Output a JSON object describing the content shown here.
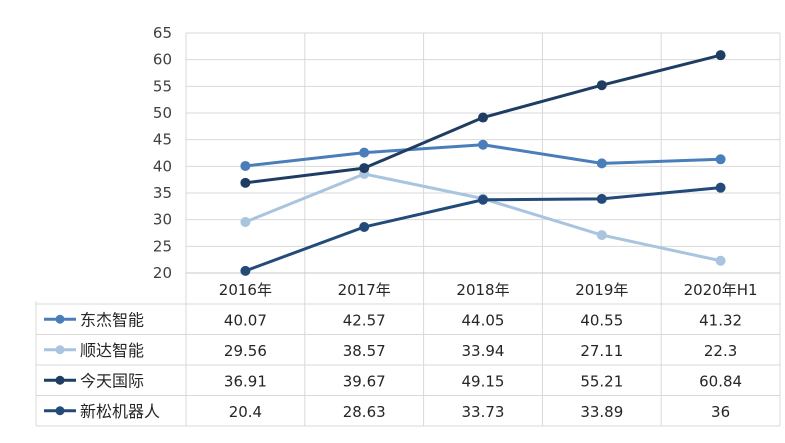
{
  "chart_data": {
    "type": "line",
    "categories": [
      "2016年",
      "2017年",
      "2018年",
      "2019年",
      "2020年H1"
    ],
    "ylim": [
      20,
      65
    ],
    "yticks": [
      20,
      25,
      30,
      35,
      40,
      45,
      50,
      55,
      60,
      65
    ],
    "grid": true,
    "legend_placement": "data-table-left",
    "series": [
      {
        "name": "东杰智能",
        "values": [
          40.07,
          42.57,
          44.05,
          40.55,
          41.32
        ],
        "value_labels": [
          "40.07",
          "42.57",
          "44.05",
          "40.55",
          "41.32"
        ],
        "color": "#4a7ebb"
      },
      {
        "name": "顺达智能",
        "values": [
          29.56,
          38.57,
          33.94,
          27.11,
          22.3
        ],
        "value_labels": [
          "29.56",
          "38.57",
          "33.94",
          "27.11",
          "22.3"
        ],
        "color": "#a9c4df"
      },
      {
        "name": "今天国际",
        "values": [
          36.91,
          39.67,
          49.15,
          55.21,
          60.84
        ],
        "value_labels": [
          "36.91",
          "39.67",
          "49.15",
          "55.21",
          "60.84"
        ],
        "color": "#1f3d63"
      },
      {
        "name": "新松机器人",
        "values": [
          20.4,
          28.63,
          33.73,
          33.89,
          36
        ],
        "value_labels": [
          "20.4",
          "28.63",
          "33.73",
          "33.89",
          "36"
        ],
        "color": "#234a78"
      }
    ]
  }
}
